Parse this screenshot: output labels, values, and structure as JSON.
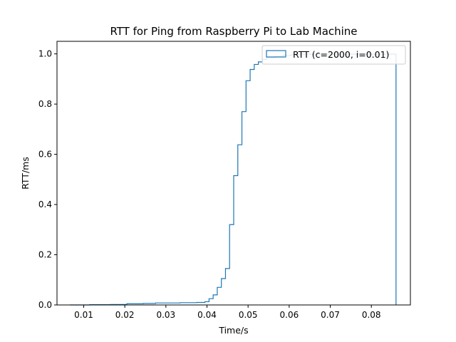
{
  "chart_data": {
    "type": "line",
    "drawstyle": "steps",
    "title": "RTT for Ping from Raspberry Pi to Lab Machine",
    "xlabel": "Time/s",
    "ylabel": "RTT/ms",
    "xlim": [
      0.0035,
      0.0895
    ],
    "ylim": [
      0,
      1.05
    ],
    "xticks": [
      0.01,
      0.02,
      0.03,
      0.04,
      0.05,
      0.06,
      0.07,
      0.08
    ],
    "xtick_labels": [
      "0.01",
      "0.02",
      "0.03",
      "0.04",
      "0.05",
      "0.06",
      "0.07",
      "0.08"
    ],
    "yticks": [
      0.0,
      0.2,
      0.4,
      0.6,
      0.8,
      1.0
    ],
    "ytick_labels": [
      "0.0",
      "0.2",
      "0.4",
      "0.6",
      "0.8",
      "1.0"
    ],
    "grid": false,
    "legend_position": "top-right",
    "series": [
      {
        "name": "RTT (c=2000, i=0.01)",
        "color": "#1f77b4",
        "x": [
          0.0066,
          0.0115,
          0.0165,
          0.0205,
          0.0245,
          0.0275,
          0.0335,
          0.0375,
          0.0395,
          0.0405,
          0.0415,
          0.0425,
          0.0435,
          0.0445,
          0.0455,
          0.0465,
          0.0475,
          0.0485,
          0.0495,
          0.0505,
          0.0515,
          0.0525,
          0.0535,
          0.0545,
          0.0565,
          0.0585,
          0.0605,
          0.0625,
          0.086
        ],
        "y": [
          0.0,
          0.001,
          0.002,
          0.005,
          0.006,
          0.008,
          0.009,
          0.01,
          0.013,
          0.025,
          0.04,
          0.07,
          0.105,
          0.145,
          0.32,
          0.515,
          0.638,
          0.77,
          0.893,
          0.938,
          0.958,
          0.968,
          0.978,
          0.985,
          0.99,
          0.994,
          0.997,
          0.999,
          1.0
        ]
      }
    ]
  }
}
